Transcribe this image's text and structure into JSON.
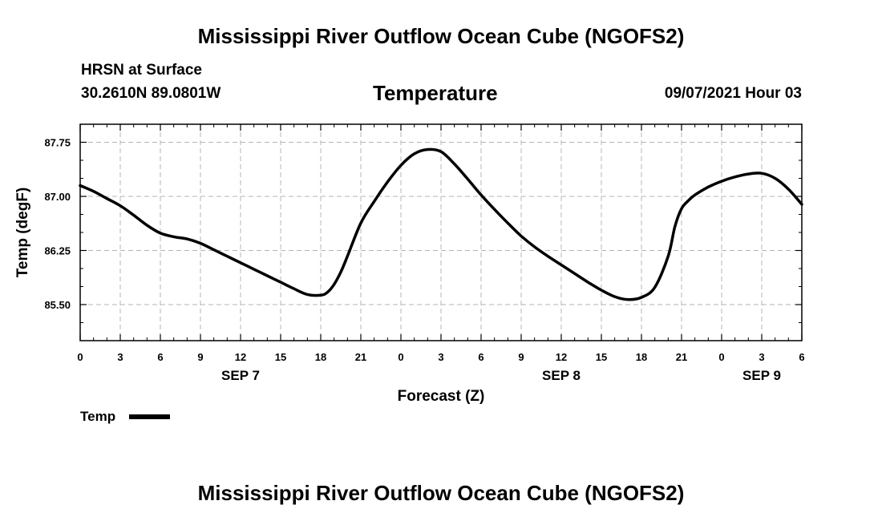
{
  "header": {
    "title": "Mississippi River Outflow Ocean Cube (NGOFS2)",
    "station": "HRSN at Surface",
    "coords": "30.2610N  89.0801W",
    "variable": "Temperature",
    "datetime": "09/07/2021 Hour 03"
  },
  "footer": {
    "title": "Mississippi River Outflow Ocean Cube (NGOFS2)"
  },
  "legend": {
    "label": "Temp"
  },
  "colors": {
    "line": "#000000",
    "grid": "#b4b4b4"
  },
  "chart_data": {
    "type": "line",
    "title": "Temperature",
    "xlabel": "Forecast (Z)",
    "ylabel": "Temp (degF)",
    "xlim": [
      0,
      54
    ],
    "ylim": [
      85.0,
      88.0
    ],
    "x_ticks": [
      0,
      3,
      6,
      9,
      12,
      15,
      18,
      21,
      24,
      27,
      30,
      33,
      36,
      39,
      42,
      45,
      48,
      51,
      54
    ],
    "x_tick_labels": [
      "0",
      "3",
      "6",
      "9",
      "12",
      "15",
      "18",
      "21",
      "0",
      "3",
      "6",
      "9",
      "12",
      "15",
      "18",
      "21",
      "0",
      "3",
      "6"
    ],
    "date_labels": [
      {
        "x": 12,
        "label": "SEP 7"
      },
      {
        "x": 36,
        "label": "SEP 8"
      },
      {
        "x": 51,
        "label": "SEP 9"
      }
    ],
    "y_ticks": [
      85.5,
      86.25,
      87.0,
      87.75
    ],
    "y_tick_labels": [
      "85.50",
      "86.25",
      "87.00",
      "87.75"
    ],
    "grid": true,
    "legend": "bottom-left",
    "series": [
      {
        "name": "Temp",
        "x": [
          0,
          1,
          2,
          3,
          4,
          5,
          6,
          7,
          8,
          9,
          10,
          11,
          12,
          13,
          14,
          15,
          16,
          17,
          18,
          18.5,
          19,
          19.5,
          20,
          21,
          22,
          23,
          24,
          25,
          26,
          27,
          28,
          29,
          30,
          31,
          32,
          33,
          34,
          35,
          36,
          37,
          38,
          39,
          40,
          41,
          42,
          43,
          44,
          44.5,
          45,
          45.5,
          46,
          47,
          48,
          49,
          50,
          51,
          52,
          53,
          54
        ],
        "y": [
          87.15,
          87.07,
          86.97,
          86.87,
          86.74,
          86.6,
          86.49,
          86.44,
          86.41,
          86.35,
          86.26,
          86.17,
          86.08,
          85.99,
          85.9,
          85.81,
          85.72,
          85.64,
          85.63,
          85.67,
          85.78,
          85.95,
          86.17,
          86.63,
          86.93,
          87.2,
          87.43,
          87.59,
          87.65,
          87.62,
          87.45,
          87.24,
          87.02,
          86.82,
          86.63,
          86.45,
          86.3,
          86.17,
          86.05,
          85.93,
          85.81,
          85.7,
          85.61,
          85.57,
          85.6,
          85.74,
          86.17,
          86.58,
          86.83,
          86.94,
          87.02,
          87.13,
          87.21,
          87.27,
          87.31,
          87.32,
          87.25,
          87.1,
          86.89
        ]
      }
    ]
  }
}
